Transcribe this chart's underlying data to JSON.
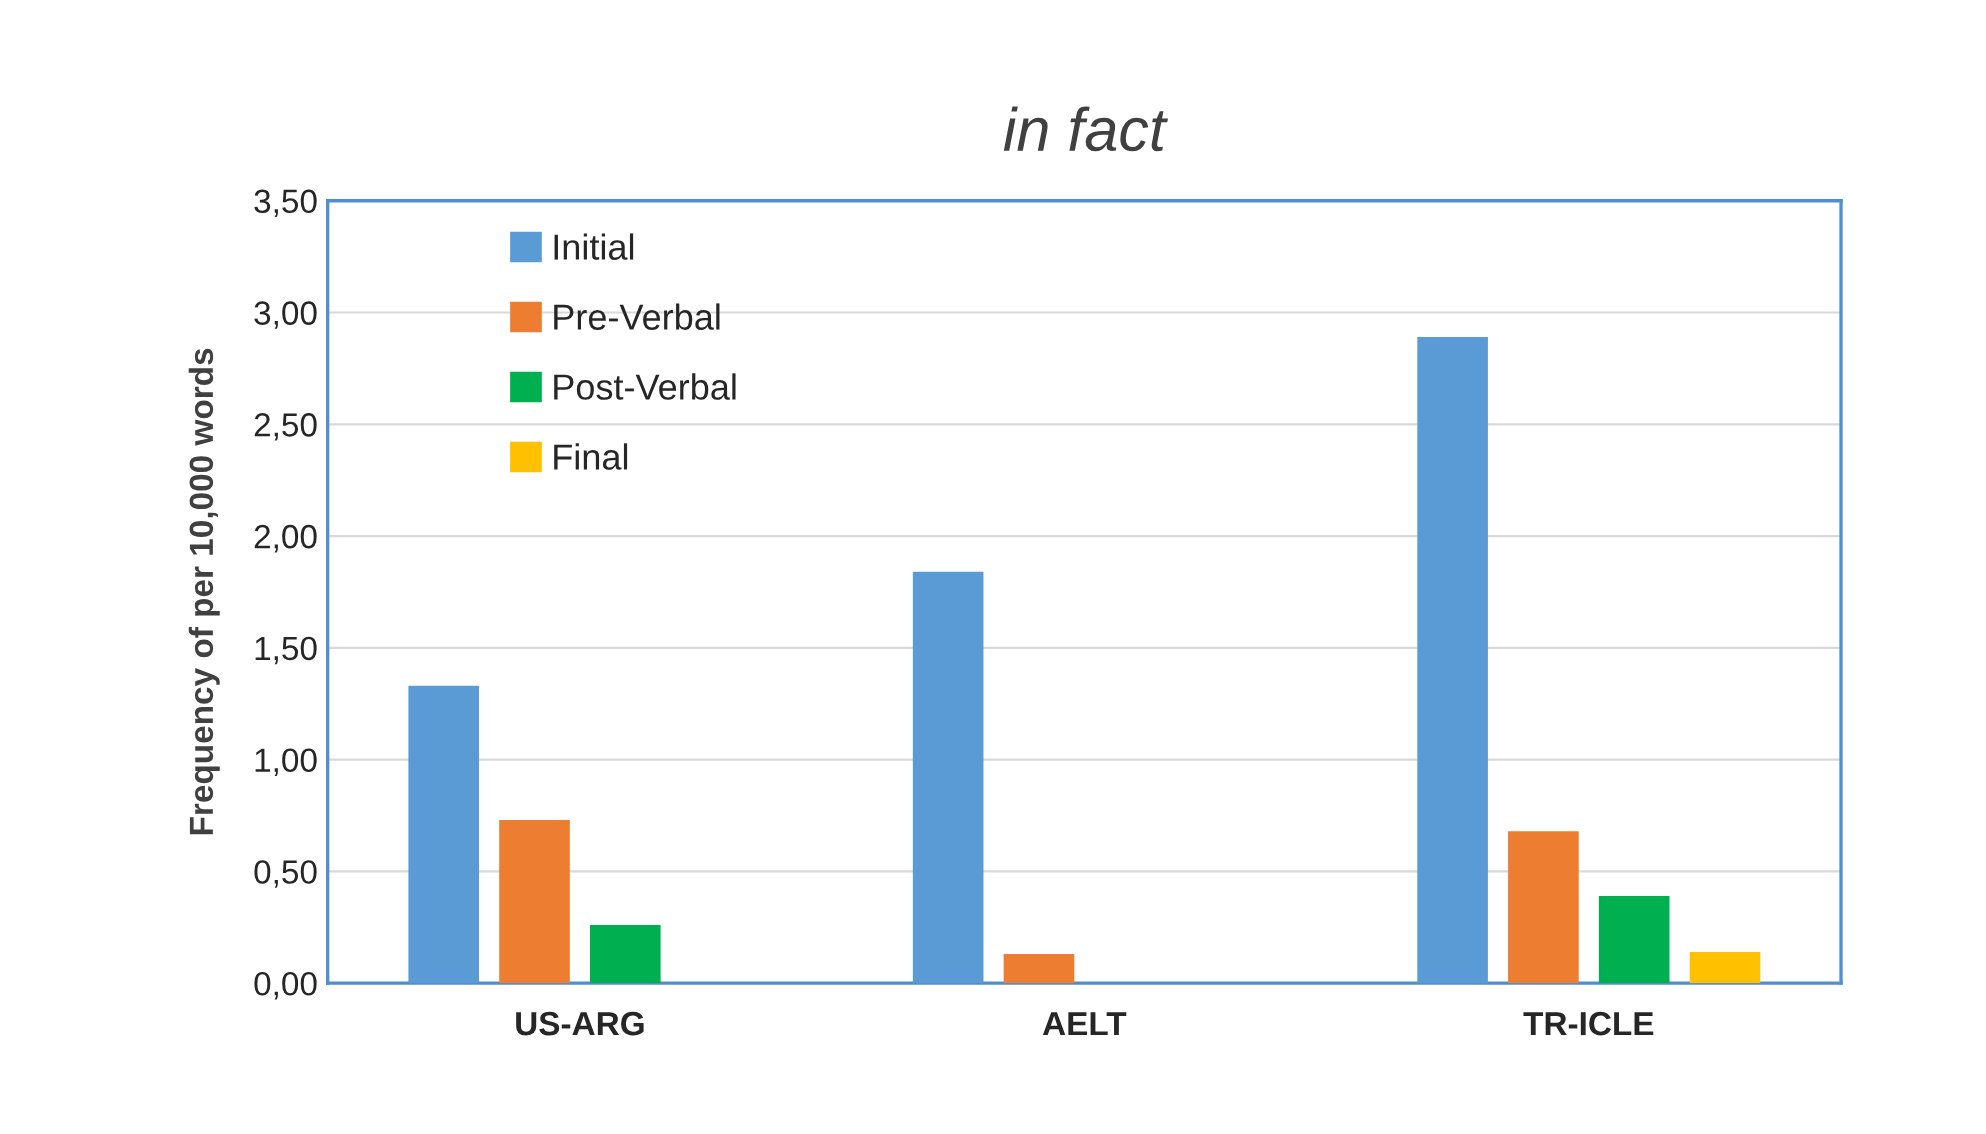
{
  "chart_data": {
    "type": "bar",
    "title": "in fact",
    "ylabel": "Frequency of per 10,000 words",
    "categories": [
      "US-ARG",
      "AELT",
      "TR-ICLE"
    ],
    "series": [
      {
        "name": "Initial",
        "color": "#5b9bd5",
        "values": [
          1.33,
          1.84,
          2.89
        ]
      },
      {
        "name": "Pre-Verbal",
        "color": "#ed7d31",
        "values": [
          0.73,
          0.13,
          0.68
        ]
      },
      {
        "name": "Post-Verbal",
        "color": "#00b050",
        "values": [
          0.26,
          null,
          0.39
        ]
      },
      {
        "name": "Final",
        "color": "#ffc000",
        "values": [
          null,
          null,
          0.14
        ]
      }
    ],
    "ylim": [
      0,
      3.5
    ],
    "yticks": [
      {
        "value": 0,
        "label": "0,00"
      },
      {
        "value": 0.5,
        "label": "0,50"
      },
      {
        "value": 1,
        "label": "1,00"
      },
      {
        "value": 1.5,
        "label": "1,50"
      },
      {
        "value": 2,
        "label": "2,00"
      },
      {
        "value": 2.5,
        "label": "2,50"
      },
      {
        "value": 3,
        "label": "3,00"
      },
      {
        "value": 3.5,
        "label": "3,50"
      }
    ],
    "grid": "y",
    "legend": "top left"
  }
}
